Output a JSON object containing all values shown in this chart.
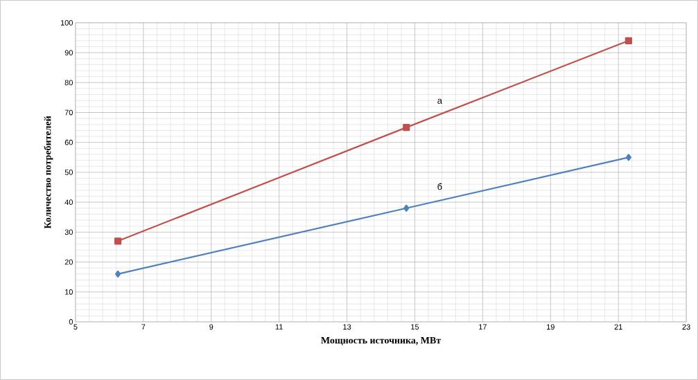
{
  "chart_data": {
    "type": "line",
    "xlabel": "Мощность источника, МВт",
    "ylabel": "Количество потребителей",
    "xlim": [
      5,
      23
    ],
    "xticks": [
      5,
      7,
      9,
      11,
      13,
      15,
      17,
      19,
      21,
      23
    ],
    "ylim": [
      0,
      100
    ],
    "yticks": [
      0,
      10,
      20,
      30,
      40,
      50,
      60,
      70,
      80,
      90,
      100
    ],
    "grid": true,
    "series": [
      {
        "name": "а",
        "color": "#c0504d",
        "marker": "square",
        "x": [
          6.25,
          14.75,
          21.3
        ],
        "values": [
          27,
          65,
          94
        ]
      },
      {
        "name": "б",
        "color": "#4f81bd",
        "marker": "diamond",
        "x": [
          6.25,
          14.75,
          21.3
        ],
        "values": [
          16,
          38,
          55
        ]
      }
    ]
  }
}
